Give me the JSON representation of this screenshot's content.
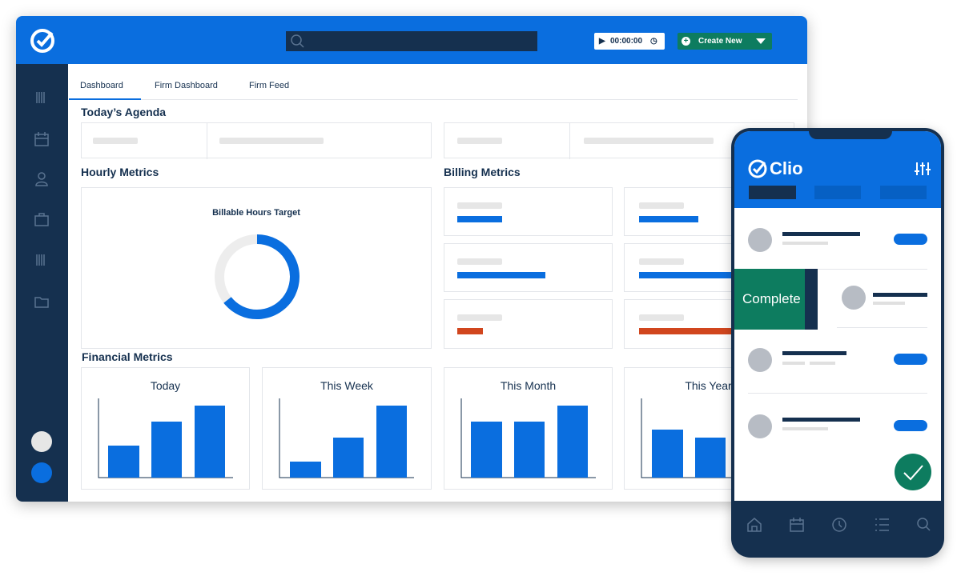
{
  "header": {
    "timer": "00:00:00",
    "create_button": "Create New"
  },
  "tabs": [
    "Dashboard",
    "Firm Dashboard",
    "Firm Feed"
  ],
  "sections": {
    "agenda": "Today’s Agenda",
    "hourly": "Hourly Metrics",
    "billing": "Billing Metrics",
    "financial": "Financial Metrics"
  },
  "hourly_card": {
    "title": "Billable Hours Target"
  },
  "financial_cards": [
    "Today",
    "This Week",
    "This Month",
    "This Year"
  ],
  "phone": {
    "brand": "Clio",
    "swipe_action": "Complete"
  }
}
